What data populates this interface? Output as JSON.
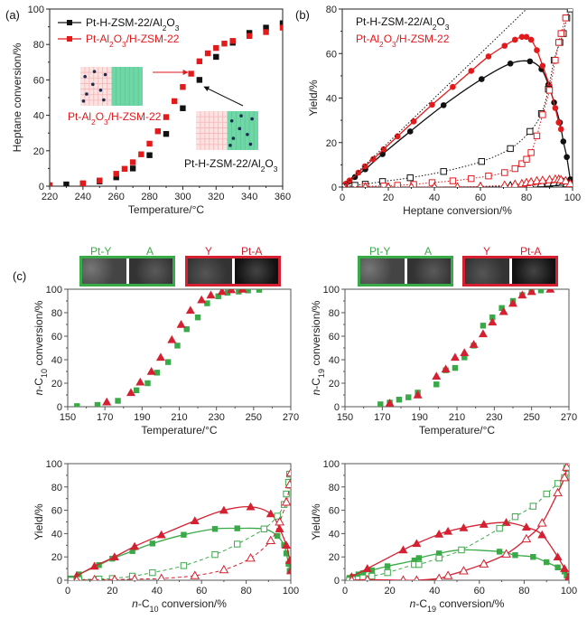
{
  "panel_labels": {
    "a": "(a)",
    "b": "(b)",
    "c": "(c)"
  },
  "colors": {
    "black": "#111111",
    "red": "#e31a1c",
    "red_dark": "#d42030",
    "green": "#3aaa48",
    "pink_grid": "#f4b6b6",
    "teal": "#6fd6a6",
    "particle": "#1a2a50"
  },
  "tem_labels": {
    "left_green": [
      "Pt-Y",
      "A"
    ],
    "left_red": [
      "Y",
      "Pt-A"
    ],
    "right_green": [
      "Pt-Y",
      "A"
    ],
    "right_red": [
      "Y",
      "Pt-A"
    ]
  },
  "inset_labels": {
    "pt_al2o3_hzsm22": "Pt-Al₂O₃/H-ZSM-22",
    "pt_hzsm22_al2o3": "Pt-H-ZSM-22/Al₂O₃"
  },
  "chart_data": [
    {
      "id": "a",
      "type": "line",
      "title": "",
      "xlabel": "Temperature/°C",
      "ylabel": "Heptane conversion/%",
      "xlim": [
        220,
        360
      ],
      "ylim": [
        0,
        100
      ],
      "xticks": [
        220,
        240,
        260,
        280,
        300,
        320,
        340,
        360
      ],
      "yticks": [
        0,
        20,
        40,
        60,
        80,
        100
      ],
      "legend_position": "top-left",
      "series": [
        {
          "name": "Pt-H-ZSM-22/Al2O3",
          "color": "#111111",
          "marker": "square-filled",
          "x": [
            220,
            230,
            240,
            250,
            260,
            270,
            280,
            290,
            300,
            310,
            320,
            330,
            340,
            350,
            360
          ],
          "y": [
            0.5,
            1,
            1.5,
            2.7,
            5,
            10,
            17.5,
            29.5,
            44,
            60,
            73,
            81,
            86.5,
            89.5,
            92
          ]
        },
        {
          "name": "Pt-Al2O3/H-ZSM-22",
          "color": "#e31a1c",
          "marker": "square-filled",
          "x": [
            220,
            240,
            250,
            260,
            265,
            270,
            275,
            280,
            285,
            290,
            295,
            300,
            305,
            310,
            315,
            320,
            325,
            330,
            340,
            350,
            360
          ],
          "y": [
            0.5,
            1.6,
            3.2,
            7,
            9.8,
            13.5,
            18,
            24,
            31,
            39,
            48,
            56,
            63.5,
            70.5,
            75,
            78,
            80.5,
            82,
            84.8,
            87,
            89.5
          ]
        }
      ],
      "legend": [
        "Pt-H-ZSM-22/Al₂O₃",
        "Pt-Al₂O₃/H-ZSM-22"
      ]
    },
    {
      "id": "b",
      "type": "line",
      "xlabel": "Heptane conversion/%",
      "ylabel": "Yield/%",
      "xlim": [
        0,
        100
      ],
      "ylim": [
        0,
        80
      ],
      "xticks": [
        0,
        20,
        40,
        60,
        80,
        100
      ],
      "yticks": [
        0,
        20,
        40,
        60,
        80
      ],
      "legend_position": "top-left",
      "legend": [
        "Pt-H-ZSM-22/Al₂O₃",
        "Pt-Al₂O₃/H-ZSM-22"
      ],
      "series": [
        {
          "name": "Pt-H-ZSM-22/Al2O3 isomers",
          "color": "#111111",
          "marker": "circle-filled",
          "line": "solid",
          "x": [
            0.5,
            3,
            5.5,
            10,
            17.5,
            29.5,
            44,
            60.5,
            73,
            81.5,
            86.5,
            89.5,
            92,
            94.5,
            96,
            97.5,
            99,
            99.5
          ],
          "y": [
            0.5,
            2.5,
            4.5,
            8,
            14.8,
            25,
            36.8,
            48.5,
            55.5,
            56.5,
            53,
            46,
            38,
            29,
            20.5,
            13.5,
            3.5,
            2
          ]
        },
        {
          "name": "Pt-Al2O3/H-ZSM-22 isomers",
          "color": "#e31a1c",
          "marker": "circle-filled",
          "line": "solid",
          "x": [
            0.5,
            1.6,
            3.2,
            7,
            9.8,
            13.5,
            18,
            24,
            31,
            39,
            48,
            56,
            63.5,
            70.5,
            75,
            78,
            80,
            82,
            84.5,
            87,
            90,
            92.5,
            94,
            95
          ],
          "y": [
            0.5,
            1.5,
            3,
            6.5,
            9.3,
            12.6,
            17,
            22.8,
            29.5,
            37,
            45,
            52.2,
            58.7,
            63.5,
            66.2,
            67.5,
            67.5,
            66.2,
            61.5,
            54.5,
            45.5,
            35.5,
            29,
            26
          ]
        },
        {
          "name": "Pt-H-ZSM-22/Al2O3 cracking",
          "color": "#111111",
          "marker": "square-open",
          "line": "dotted",
          "x": [
            0.5,
            5.5,
            10,
            17.5,
            29.5,
            44,
            60.5,
            73,
            81.5,
            86.5,
            89.5,
            92,
            94.5,
            96,
            97.5,
            99
          ],
          "y": [
            0.1,
            0.8,
            1.3,
            2.5,
            4.2,
            7,
            11.5,
            17.3,
            25,
            33,
            44,
            57,
            65,
            69,
            76,
            80
          ]
        },
        {
          "name": "Pt-Al2O3/H-ZSM-22 cracking",
          "color": "#e31a1c",
          "marker": "square-open",
          "line": "dotted",
          "x": [
            0.5,
            10,
            18,
            24,
            31,
            39,
            48,
            56,
            63.5,
            70.5,
            75,
            78,
            80,
            82,
            84.5,
            87,
            90,
            92.5,
            94,
            95,
            97
          ],
          "y": [
            0,
            0.3,
            0.5,
            0.8,
            1.2,
            2,
            2.8,
            3.8,
            5,
            6.5,
            8.3,
            10.5,
            12.5,
            15.5,
            23,
            32.5,
            43.5,
            57,
            65,
            69,
            76
          ]
        },
        {
          "name": "Pt-H-ZSM-22/Al2O3 other",
          "color": "#111111",
          "marker": "triangle-open",
          "line": "dotted",
          "x": [
            0.5,
            20,
            40,
            60,
            73,
            81.5,
            86.5,
            89.5,
            92,
            94.5,
            96,
            97.5,
            99
          ],
          "y": [
            0,
            0,
            0,
            0.2,
            0.6,
            1,
            1.5,
            1.8,
            2,
            2.2,
            2.2,
            1.5,
            0.8
          ]
        },
        {
          "name": "Pt-Al2O3/H-ZSM-22 other",
          "color": "#e31a1c",
          "marker": "triangle-open",
          "line": "dotted",
          "x": [
            0.5,
            10,
            20,
            30,
            40,
            50,
            60,
            70.5,
            75,
            78,
            80,
            82,
            84.5,
            87,
            90,
            92.5,
            94,
            95,
            97,
            99
          ],
          "y": [
            0,
            0,
            0,
            0,
            0,
            0,
            0.3,
            0.8,
            1.2,
            1.5,
            2,
            2.3,
            2.8,
            3,
            3.3,
            3.5,
            3.5,
            3.3,
            2.8,
            1.5
          ]
        },
        {
          "name": "theoretical isomer line",
          "color": "#111111",
          "marker": "none",
          "line": "dotted",
          "x": [
            0,
            80
          ],
          "y": [
            0,
            80
          ]
        }
      ]
    },
    {
      "id": "c1",
      "type": "scatter",
      "xlabel": "Temperature/°C",
      "ylabel": "n-C10 conversion/%",
      "xlim": [
        150,
        270
      ],
      "ylim": [
        0,
        100
      ],
      "xticks": [
        150,
        170,
        190,
        210,
        230,
        250,
        270
      ],
      "yticks": [
        0,
        20,
        40,
        60,
        80,
        100
      ],
      "series": [
        {
          "name": "Pt-Y/A",
          "color": "#3aaa48",
          "marker": "square-filled",
          "x": [
            155,
            166,
            177,
            187,
            193,
            198,
            204,
            209,
            214,
            220,
            225,
            231,
            236,
            242,
            247,
            253
          ],
          "y": [
            0.5,
            1.5,
            5,
            14,
            20,
            29,
            38,
            52,
            66,
            76,
            88,
            94,
            97,
            98,
            99,
            99.5
          ]
        },
        {
          "name": "Y/Pt-A",
          "color": "#d42030",
          "marker": "triangle-filled",
          "x": [
            171,
            184,
            189,
            195,
            200,
            206,
            211,
            216,
            222,
            227,
            233,
            238,
            244
          ],
          "y": [
            4,
            12,
            21,
            30,
            42,
            57,
            70,
            82,
            91,
            95,
            98,
            99.5,
            100
          ]
        }
      ]
    },
    {
      "id": "c2",
      "type": "scatter",
      "xlabel": "Temperature/°C",
      "ylabel": "n-C19 conversion/%",
      "xlim": [
        150,
        270
      ],
      "ylim": [
        0,
        100
      ],
      "xticks": [
        150,
        170,
        190,
        210,
        230,
        250,
        270
      ],
      "yticks": [
        0,
        20,
        40,
        60,
        80,
        100
      ],
      "series": [
        {
          "name": "Pt-Y/A",
          "color": "#3aaa48",
          "marker": "square-filled",
          "x": [
            169,
            174,
            179,
            184,
            189,
            199,
            204,
            209,
            214,
            219,
            224,
            229,
            234,
            240,
            245,
            250,
            255,
            260
          ],
          "y": [
            2,
            3.5,
            6,
            8,
            12,
            19,
            31,
            33,
            42,
            52,
            69,
            76,
            84,
            90,
            95,
            98,
            99,
            100
          ]
        },
        {
          "name": "Y/Pt-A",
          "color": "#d42030",
          "marker": "triangle-filled",
          "x": [
            174,
            189,
            199,
            204,
            209,
            214,
            219,
            224,
            229,
            235,
            240,
            245,
            250,
            260
          ],
          "y": [
            3,
            10,
            26,
            32,
            42,
            46,
            53,
            62,
            72,
            81,
            88,
            95,
            98,
            100
          ]
        }
      ]
    },
    {
      "id": "c3",
      "type": "line",
      "xlabel": "n-C10 conversion/%",
      "ylabel": "Yield/%",
      "xlim": [
        0,
        100
      ],
      "ylim": [
        0,
        100
      ],
      "xticks": [
        0,
        20,
        40,
        60,
        80,
        100
      ],
      "yticks": [
        0,
        20,
        40,
        60,
        80,
        100
      ],
      "series": [
        {
          "name": "Pt-Y/A isomers",
          "color": "#3aaa48",
          "marker": "square-filled",
          "line": "solid",
          "x": [
            0.5,
            1.5,
            5,
            14,
            20,
            29,
            38,
            52,
            66,
            76,
            88,
            94,
            97,
            98,
            99,
            99.5
          ],
          "y": [
            0.5,
            1.5,
            5,
            13,
            18.5,
            25,
            31.5,
            39,
            44,
            44.5,
            44,
            38,
            30,
            23,
            14,
            8
          ]
        },
        {
          "name": "Y/Pt-A isomers",
          "color": "#d42030",
          "marker": "triangle-filled",
          "line": "solid",
          "x": [
            4,
            12,
            21,
            30,
            42,
            57,
            70,
            82,
            91,
            95,
            98,
            99.5,
            100
          ],
          "y": [
            3.8,
            12,
            20,
            29,
            39,
            51,
            60,
            63,
            57,
            44,
            30,
            17,
            8
          ]
        },
        {
          "name": "Pt-Y/A cracking",
          "color": "#3aaa48",
          "marker": "square-open",
          "line": "dashed",
          "x": [
            0.5,
            1.5,
            5,
            14,
            20,
            29,
            38,
            52,
            66,
            76,
            88,
            94,
            97,
            98,
            99,
            99.5
          ],
          "y": [
            0,
            0,
            0.5,
            1,
            1.5,
            3.5,
            6.5,
            12.5,
            22,
            31,
            44,
            55,
            65,
            74,
            84,
            91
          ]
        },
        {
          "name": "Y/Pt-A cracking",
          "color": "#d42030",
          "marker": "triangle-open",
          "line": "dashed",
          "x": [
            4,
            12,
            21,
            30,
            42,
            57,
            70,
            82,
            91,
            95,
            98,
            99.5,
            100
          ],
          "y": [
            0,
            0.5,
            0.5,
            1,
            1.5,
            4,
            9,
            19,
            34,
            50,
            67,
            82,
            92
          ]
        }
      ]
    },
    {
      "id": "c4",
      "type": "line",
      "xlabel": "n-C19 conversion/%",
      "ylabel": "Yield/%",
      "xlim": [
        0,
        100
      ],
      "ylim": [
        0,
        100
      ],
      "xticks": [
        0,
        20,
        40,
        60,
        80,
        100
      ],
      "yticks": [
        0,
        20,
        40,
        60,
        80,
        100
      ],
      "series": [
        {
          "name": "Pt-Y/A isomers",
          "color": "#3aaa48",
          "marker": "square-filled",
          "line": "solid",
          "x": [
            2,
            3.5,
            6,
            8,
            12,
            19,
            31,
            33,
            42,
            52,
            69,
            76,
            84,
            90,
            95,
            98,
            99,
            100
          ],
          "y": [
            2,
            3,
            5,
            6,
            8.5,
            12,
            17,
            19,
            23,
            26,
            24.5,
            21.5,
            20,
            15.5,
            11,
            7.5,
            4,
            2
          ]
        },
        {
          "name": "Y/Pt-A isomers",
          "color": "#d42030",
          "marker": "triangle-filled",
          "line": "solid",
          "x": [
            3,
            10,
            26,
            32,
            42,
            46,
            53,
            62,
            72,
            81,
            88,
            95,
            98,
            100
          ],
          "y": [
            3,
            10,
            26,
            31.5,
            39.5,
            42,
            45,
            48,
            49.5,
            45.5,
            39,
            20,
            10,
            3
          ]
        },
        {
          "name": "Pt-Y/A cracking",
          "color": "#3aaa48",
          "marker": "square-open",
          "line": "dashed",
          "x": [
            2,
            3.5,
            6,
            8,
            12,
            19,
            31,
            33,
            42,
            52,
            69,
            76,
            84,
            90,
            95,
            98,
            99,
            100
          ],
          "y": [
            0,
            0.5,
            1,
            2,
            3.5,
            6.5,
            13.5,
            13.5,
            19,
            26,
            44.5,
            54.5,
            63.5,
            74,
            83,
            88,
            96,
            98
          ]
        },
        {
          "name": "Y/Pt-A cracking",
          "color": "#d42030",
          "marker": "triangle-open",
          "line": "solid",
          "x": [
            3,
            10,
            26,
            32,
            42,
            46,
            53,
            62,
            72,
            81,
            88,
            95,
            98,
            99
          ],
          "y": [
            0,
            0.5,
            0,
            0,
            1.5,
            4,
            8,
            14,
            22.5,
            35.5,
            49,
            75,
            88,
            97
          ]
        }
      ]
    }
  ]
}
